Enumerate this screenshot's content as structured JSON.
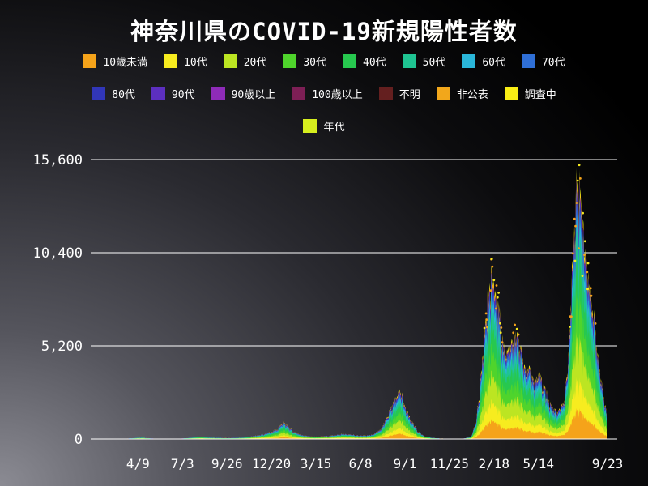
{
  "chart_data": {
    "type": "area",
    "stacked": true,
    "title": "神奈川県のCOVID-19新規陽性者数",
    "grid": true,
    "legend_position": "top",
    "ylim": [
      0,
      15600
    ],
    "yticks": [
      {
        "value": 0,
        "label": "0"
      },
      {
        "value": 5200,
        "label": "5,200"
      },
      {
        "value": 10400,
        "label": "10,400"
      },
      {
        "value": 15600,
        "label": "15,600"
      }
    ],
    "x_range": [
      "2020-01-16",
      "2022-09-23"
    ],
    "xticks": [
      {
        "date": "2020-04-09",
        "label": "4/9"
      },
      {
        "date": "2020-07-03",
        "label": "7/3"
      },
      {
        "date": "2020-09-26",
        "label": "9/26"
      },
      {
        "date": "2020-12-20",
        "label": "12/20"
      },
      {
        "date": "2021-03-15",
        "label": "3/15"
      },
      {
        "date": "2021-06-08",
        "label": "6/8"
      },
      {
        "date": "2021-09-01",
        "label": "9/1"
      },
      {
        "date": "2021-11-25",
        "label": "11/25"
      },
      {
        "date": "2022-02-18",
        "label": "2/18"
      },
      {
        "date": "2022-05-14",
        "label": "5/14"
      },
      {
        "date": "2022-09-23",
        "label": "9/23"
      }
    ],
    "series_groups": [
      {
        "name": "10歳未満",
        "color": "#f5a31a",
        "share": 0.115
      },
      {
        "name": "10代",
        "color": "#f7ec1f",
        "share": 0.115
      },
      {
        "name": "20代",
        "color": "#bce522",
        "share": 0.17
      },
      {
        "name": "30代",
        "color": "#4fd42c",
        "share": 0.155
      },
      {
        "name": "40代",
        "color": "#27c84f",
        "share": 0.15
      },
      {
        "name": "50代",
        "color": "#1fc492",
        "share": 0.11
      },
      {
        "name": "60代",
        "color": "#2ab6d9",
        "share": 0.06
      },
      {
        "name": "70代",
        "color": "#2f6fd6",
        "share": 0.045
      },
      {
        "name": "80代",
        "color": "#3136b8",
        "share": 0.03
      },
      {
        "name": "90代",
        "color": "#5c2fbf",
        "share": 0.013
      },
      {
        "name": "90歳以上",
        "color": "#8e2bb8",
        "share": 0.004
      },
      {
        "name": "100歳以上",
        "color": "#7d1f55",
        "share": 0.001
      },
      {
        "name": "不明",
        "color": "#641f1f",
        "share": 0.002
      },
      {
        "name": "非公表",
        "color": "#f2a71b",
        "share": 0.02
      },
      {
        "name": "調査中",
        "color": "#f9ee15",
        "share": 0.012
      },
      {
        "name": "年代",
        "color": "#d6ee1e",
        "share": 0.008
      }
    ],
    "totals": [
      [
        "2020-01-16",
        0
      ],
      [
        "2020-02-01",
        1
      ],
      [
        "2020-02-15",
        2
      ],
      [
        "2020-03-01",
        5
      ],
      [
        "2020-03-15",
        12
      ],
      [
        "2020-03-29",
        45
      ],
      [
        "2020-04-09",
        80
      ],
      [
        "2020-04-16",
        92
      ],
      [
        "2020-04-25",
        60
      ],
      [
        "2020-05-09",
        25
      ],
      [
        "2020-05-23",
        10
      ],
      [
        "2020-06-06",
        12
      ],
      [
        "2020-06-20",
        16
      ],
      [
        "2020-07-03",
        32
      ],
      [
        "2020-07-17",
        65
      ],
      [
        "2020-07-31",
        115
      ],
      [
        "2020-08-07",
        130
      ],
      [
        "2020-08-21",
        95
      ],
      [
        "2020-09-04",
        75
      ],
      [
        "2020-09-18",
        58
      ],
      [
        "2020-09-26",
        52
      ],
      [
        "2020-10-10",
        62
      ],
      [
        "2020-10-24",
        75
      ],
      [
        "2020-11-07",
        125
      ],
      [
        "2020-11-21",
        205
      ],
      [
        "2020-12-05",
        285
      ],
      [
        "2020-12-20",
        430
      ],
      [
        "2020-12-31",
        590
      ],
      [
        "2021-01-09",
        950
      ],
      [
        "2021-01-16",
        870
      ],
      [
        "2021-01-23",
        640
      ],
      [
        "2021-02-06",
        340
      ],
      [
        "2021-02-20",
        215
      ],
      [
        "2021-03-06",
        145
      ],
      [
        "2021-03-15",
        132
      ],
      [
        "2021-03-27",
        155
      ],
      [
        "2021-04-10",
        185
      ],
      [
        "2021-04-24",
        235
      ],
      [
        "2021-05-08",
        285
      ],
      [
        "2021-05-22",
        255
      ],
      [
        "2021-06-08",
        205
      ],
      [
        "2021-06-19",
        195
      ],
      [
        "2021-07-03",
        285
      ],
      [
        "2021-07-17",
        560
      ],
      [
        "2021-07-31",
        1400
      ],
      [
        "2021-08-14",
        2350
      ],
      [
        "2021-08-21",
        2750
      ],
      [
        "2021-08-28",
        2420
      ],
      [
        "2021-09-01",
        1950
      ],
      [
        "2021-09-11",
        1150
      ],
      [
        "2021-09-25",
        470
      ],
      [
        "2021-10-09",
        160
      ],
      [
        "2021-10-23",
        65
      ],
      [
        "2021-11-06",
        32
      ],
      [
        "2021-11-25",
        16
      ],
      [
        "2021-12-09",
        15
      ],
      [
        "2021-12-23",
        26
      ],
      [
        "2022-01-06",
        130
      ],
      [
        "2022-01-15",
        1050
      ],
      [
        "2022-01-22",
        2900
      ],
      [
        "2022-01-29",
        5300
      ],
      [
        "2022-02-05",
        8100
      ],
      [
        "2022-02-12",
        9200
      ],
      [
        "2022-02-18",
        9400
      ],
      [
        "2022-02-26",
        7800
      ],
      [
        "2022-03-05",
        6300
      ],
      [
        "2022-03-12",
        5400
      ],
      [
        "2022-03-15",
        5200
      ],
      [
        "2022-03-26",
        5800
      ],
      [
        "2022-04-02",
        6100
      ],
      [
        "2022-04-09",
        5300
      ],
      [
        "2022-04-16",
        4700
      ],
      [
        "2022-04-23",
        4200
      ],
      [
        "2022-05-07",
        3200
      ],
      [
        "2022-05-14",
        4000
      ],
      [
        "2022-05-21",
        3400
      ],
      [
        "2022-06-04",
        2200
      ],
      [
        "2022-06-18",
        1450
      ],
      [
        "2022-07-02",
        2300
      ],
      [
        "2022-07-09",
        4600
      ],
      [
        "2022-07-16",
        8800
      ],
      [
        "2022-07-23",
        13800
      ],
      [
        "2022-07-28",
        15500
      ],
      [
        "2022-08-04",
        12600
      ],
      [
        "2022-08-11",
        11000
      ],
      [
        "2022-08-18",
        9600
      ],
      [
        "2022-08-25",
        7800
      ],
      [
        "2022-09-01",
        5600
      ],
      [
        "2022-09-08",
        4100
      ],
      [
        "2022-09-15",
        2600
      ],
      [
        "2022-09-23",
        1300
      ]
    ],
    "scatter_marker_colors": [
      "#f5a31a",
      "#f7ec1f"
    ]
  }
}
